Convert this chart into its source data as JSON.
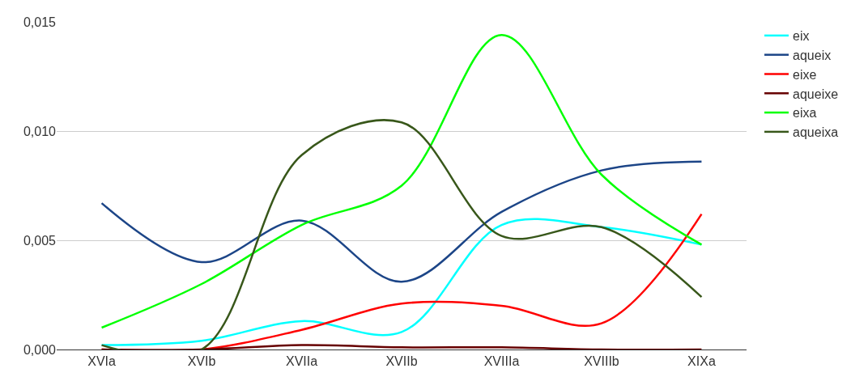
{
  "chart_data": {
    "type": "line",
    "categories": [
      "XVIa",
      "XVIb",
      "XVIIa",
      "XVIIb",
      "XVIIIa",
      "XVIIIb",
      "XIXa"
    ],
    "series": [
      {
        "name": "eix",
        "color": "#00ffff",
        "values": [
          0.0002,
          0.0004,
          0.0013,
          0.0008,
          0.0057,
          0.0056,
          0.0048
        ]
      },
      {
        "name": "aqueix",
        "color": "#1c4587",
        "values": [
          0.0067,
          0.004,
          0.0059,
          0.0031,
          0.0063,
          0.0082,
          0.0086
        ]
      },
      {
        "name": "eixe",
        "color": "#ff0000",
        "values": [
          0.0,
          0.0,
          0.0009,
          0.0021,
          0.002,
          0.0012,
          0.0062
        ]
      },
      {
        "name": "aqueixe",
        "color": "#660000",
        "values": [
          0.0,
          0.0,
          0.0002,
          0.0001,
          0.0001,
          0.0,
          0.0
        ]
      },
      {
        "name": "eixa",
        "color": "#00ff00",
        "values": [
          0.001,
          0.003,
          0.0057,
          0.0075,
          0.0144,
          0.008,
          0.0048
        ]
      },
      {
        "name": "aqueixa",
        "color": "#38571a",
        "values": [
          0.0002,
          0.0,
          0.0089,
          0.0104,
          0.0052,
          0.0056,
          0.0024
        ]
      }
    ],
    "ylim": [
      0,
      0.015
    ],
    "yticks": [
      {
        "value": 0,
        "label": "0,000"
      },
      {
        "value": 0.005,
        "label": "0,005"
      },
      {
        "value": 0.01,
        "label": "0,010"
      },
      {
        "value": 0.015,
        "label": "0,015"
      }
    ],
    "grid": "y",
    "legend": "right",
    "marker": "none",
    "line_style": "solid"
  }
}
